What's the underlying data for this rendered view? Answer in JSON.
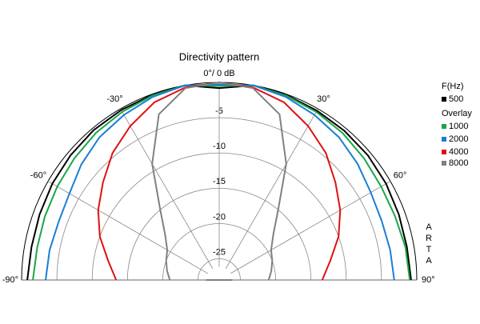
{
  "chart_data": {
    "type": "polar-line",
    "title": "Directivity pattern",
    "x": [
      -90,
      -80,
      -70,
      -60,
      -50,
      -40,
      -30,
      -20,
      -10,
      0,
      10,
      20,
      30,
      40,
      50,
      60,
      70,
      80,
      90
    ],
    "xticks": [
      {
        "value": -90,
        "label": "-90°"
      },
      {
        "value": -60,
        "label": "-60°"
      },
      {
        "value": -30,
        "label": "-30°"
      },
      {
        "value": 0,
        "label": "0°/ 0 dB"
      },
      {
        "value": 30,
        "label": "30°"
      },
      {
        "value": 60,
        "label": "60°"
      },
      {
        "value": 90,
        "label": "90°"
      }
    ],
    "ylim": [
      -28,
      0
    ],
    "yticks": [
      -5,
      -10,
      -15,
      -20,
      -25
    ],
    "legend_title": "F(Hz)",
    "overlay_title": "Overlay",
    "watermark": "ARTA",
    "series": [
      {
        "name": "500",
        "color": "#000000",
        "values": [
          -0.8,
          -1.0,
          -0.9,
          -0.7,
          -0.5,
          -0.3,
          -0.2,
          -0.1,
          0,
          -0.8,
          0,
          -0.1,
          -0.3,
          -0.4,
          -0.5,
          -0.7,
          -0.9,
          -1.0,
          -0.8
        ]
      },
      {
        "name": "1000",
        "color": "#1aa64a",
        "values": [
          -1.6,
          -1.8,
          -1.7,
          -1.5,
          -1.2,
          -0.8,
          -0.5,
          -0.2,
          0,
          -0.5,
          0,
          -0.2,
          -0.5,
          -0.8,
          -1.2,
          -1.5,
          -1.5,
          -1.2,
          -1.0
        ]
      },
      {
        "name": "2000",
        "color": "#1a7fd4",
        "values": [
          -3.4,
          -3.6,
          -3.8,
          -3.5,
          -2.5,
          -1.6,
          -1.0,
          -0.4,
          0,
          -0.3,
          0,
          -0.4,
          -1.0,
          -1.6,
          -2.4,
          -3.2,
          -3.5,
          -3.4,
          -3.2
        ]
      },
      {
        "name": "4000",
        "color": "#e01010",
        "values": [
          -13.4,
          -12.0,
          -10.0,
          -8.2,
          -6.5,
          -4.5,
          -2.8,
          -1.2,
          -0.3,
          0,
          -0.3,
          -1.2,
          -2.8,
          -4.5,
          -6.5,
          -8.2,
          -10.0,
          -12.0,
          -13.4
        ]
      },
      {
        "name": "8000",
        "color": "#808080",
        "values": [
          -21.0,
          -20.5,
          -20.0,
          -19.5,
          -18.0,
          -15.0,
          -9.0,
          -3.0,
          -0.4,
          0,
          -0.4,
          -3.0,
          -9.0,
          -15.0,
          -18.0,
          -19.5,
          -20.0,
          -20.5,
          -21.0
        ]
      }
    ],
    "grid": true
  }
}
